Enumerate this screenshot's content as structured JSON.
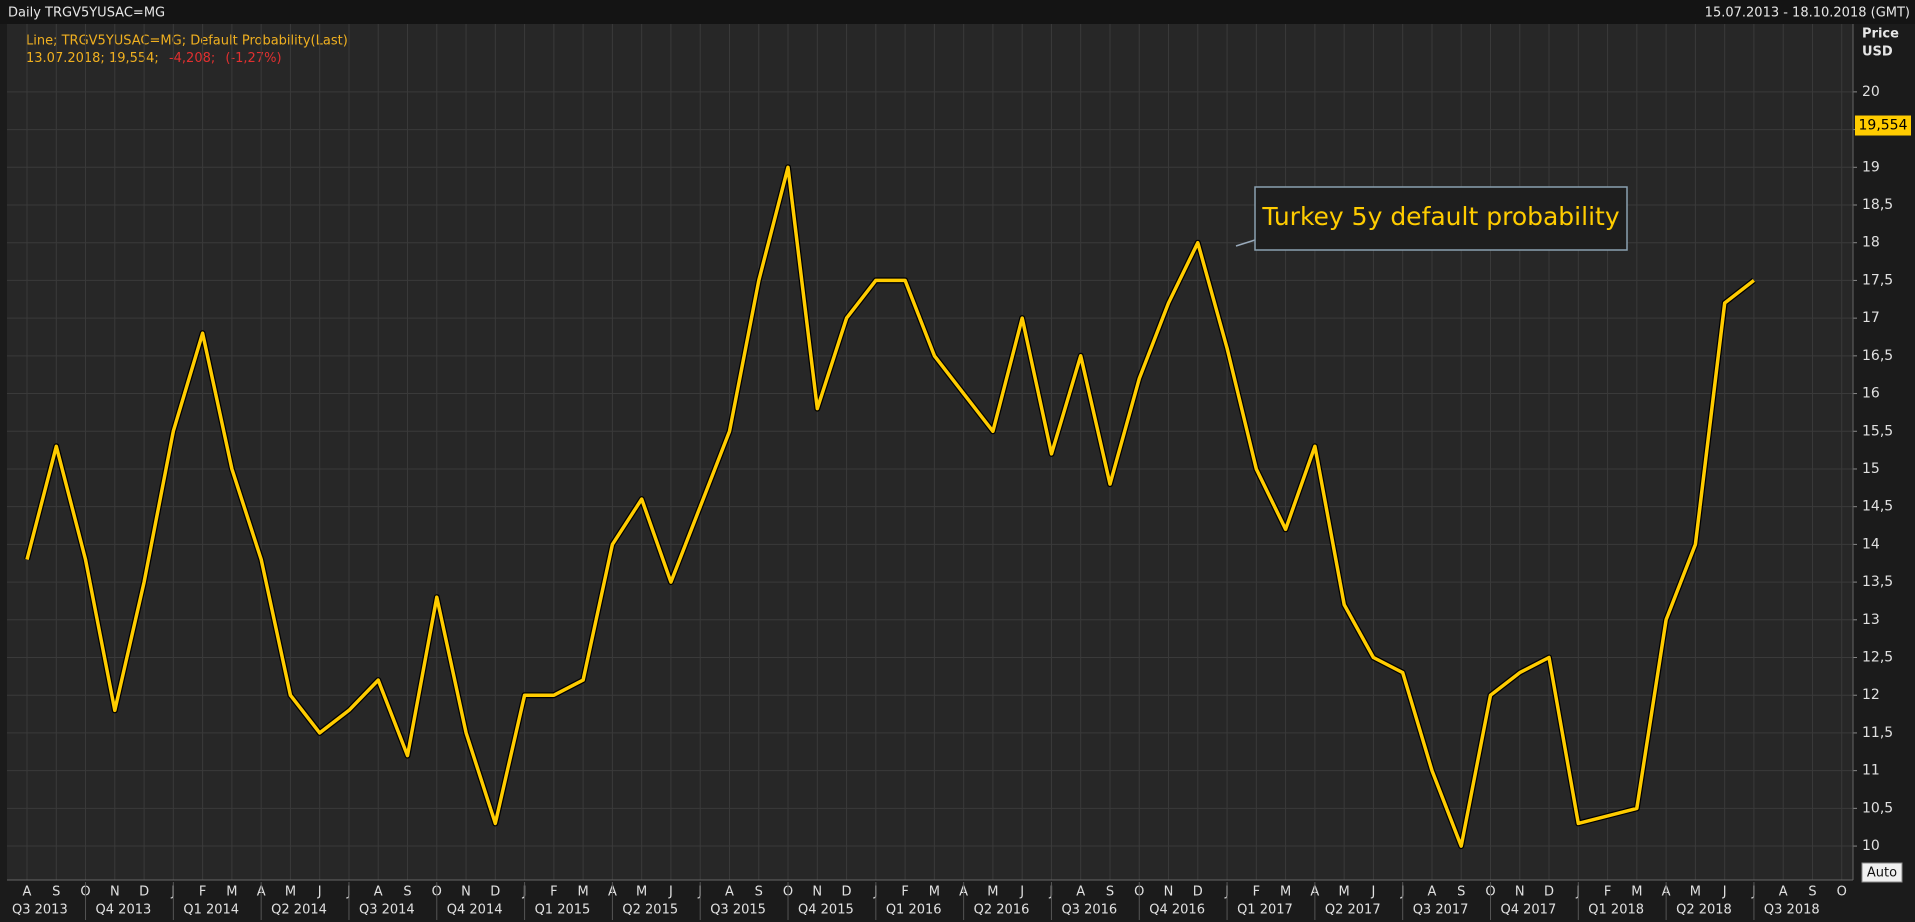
{
  "chart_data": {
    "type": "line",
    "title": "Daily TRGV5YUSAC=MG",
    "date_range": "15.07.2013 - 18.10.2018 (GMT)",
    "legend_line": "Line; TRGV5YUSAC=MG; Default Probability(Last)",
    "legend_values": [
      "13.07.2018; 19,554;",
      "-4,208;",
      "(-1,27%)"
    ],
    "y_axis_label": [
      "Price",
      "USD"
    ],
    "annotation": "Turkey 5y default probability",
    "button": "Auto",
    "color": "#ffcc00",
    "categories": [
      "A",
      "S",
      "O",
      "N",
      "D",
      "J",
      "F",
      "M",
      "A",
      "M",
      "J",
      "J",
      "A",
      "S",
      "O",
      "N",
      "D",
      "J",
      "F",
      "M",
      "A",
      "M",
      "J",
      "J",
      "A",
      "S",
      "O",
      "N",
      "D",
      "J",
      "F",
      "M",
      "A",
      "M",
      "J",
      "J",
      "A",
      "S",
      "O",
      "N",
      "D",
      "J",
      "F",
      "M",
      "A",
      "M",
      "J",
      "J",
      "A",
      "S",
      "O",
      "N",
      "D",
      "J",
      "F",
      "M",
      "A",
      "M",
      "J",
      "J",
      "A",
      "S",
      "O"
    ],
    "quarters": [
      "Q3 2013",
      "Q4 2013",
      "Q1 2014",
      "Q2 2014",
      "Q3 2014",
      "Q4 2014",
      "Q1 2015",
      "Q2 2015",
      "Q3 2015",
      "Q4 2015",
      "Q1 2016",
      "Q2 2016",
      "Q3 2016",
      "Q4 2016",
      "Q1 2017",
      "Q2 2017",
      "Q3 2017",
      "Q4 2017",
      "Q1 2018",
      "Q2 2018",
      "Q3 2018"
    ],
    "values": [
      13.8,
      15.3,
      13.8,
      11.8,
      13.5,
      15.5,
      16.8,
      15.0,
      13.8,
      12.0,
      11.5,
      11.8,
      12.2,
      11.2,
      13.3,
      11.5,
      10.3,
      12.0,
      12.0,
      12.2,
      14.0,
      14.6,
      13.5,
      14.5,
      15.5,
      17.5,
      19.0,
      15.8,
      17.0,
      17.5,
      17.5,
      16.5,
      16.0,
      15.5,
      17.0,
      15.2,
      16.5,
      14.8,
      16.2,
      17.2,
      18.0,
      16.6,
      15.0,
      14.2,
      15.3,
      13.2,
      12.5,
      12.3,
      11.0,
      10.0,
      12.0,
      12.3,
      12.5,
      10.3,
      10.4,
      10.5,
      13.0,
      14.0,
      17.2,
      17.5,
      null,
      null,
      null
    ],
    "last_value": {
      "value": 19.554,
      "label": "19,554"
    },
    "ylim": [
      9.55,
      20.9
    ],
    "yticks": [
      10,
      {
        "value": 10.5,
        "label": "10,5"
      },
      11,
      {
        "value": 11.5,
        "label": "11,5"
      },
      12,
      {
        "value": 12.5,
        "label": "12,5"
      },
      13,
      {
        "value": 13.5,
        "label": "13,5"
      },
      14,
      {
        "value": 14.5,
        "label": "14,5"
      },
      15,
      {
        "value": 15.5,
        "label": "15,5"
      },
      16,
      {
        "value": 16.5,
        "label": "16,5"
      },
      17,
      {
        "value": 17.5,
        "label": "17,5"
      },
      18,
      {
        "value": 18.5,
        "label": "18,5"
      },
      19,
      {
        "value": 19.5,
        "label": "19,5"
      },
      20
    ],
    "grid": true
  }
}
